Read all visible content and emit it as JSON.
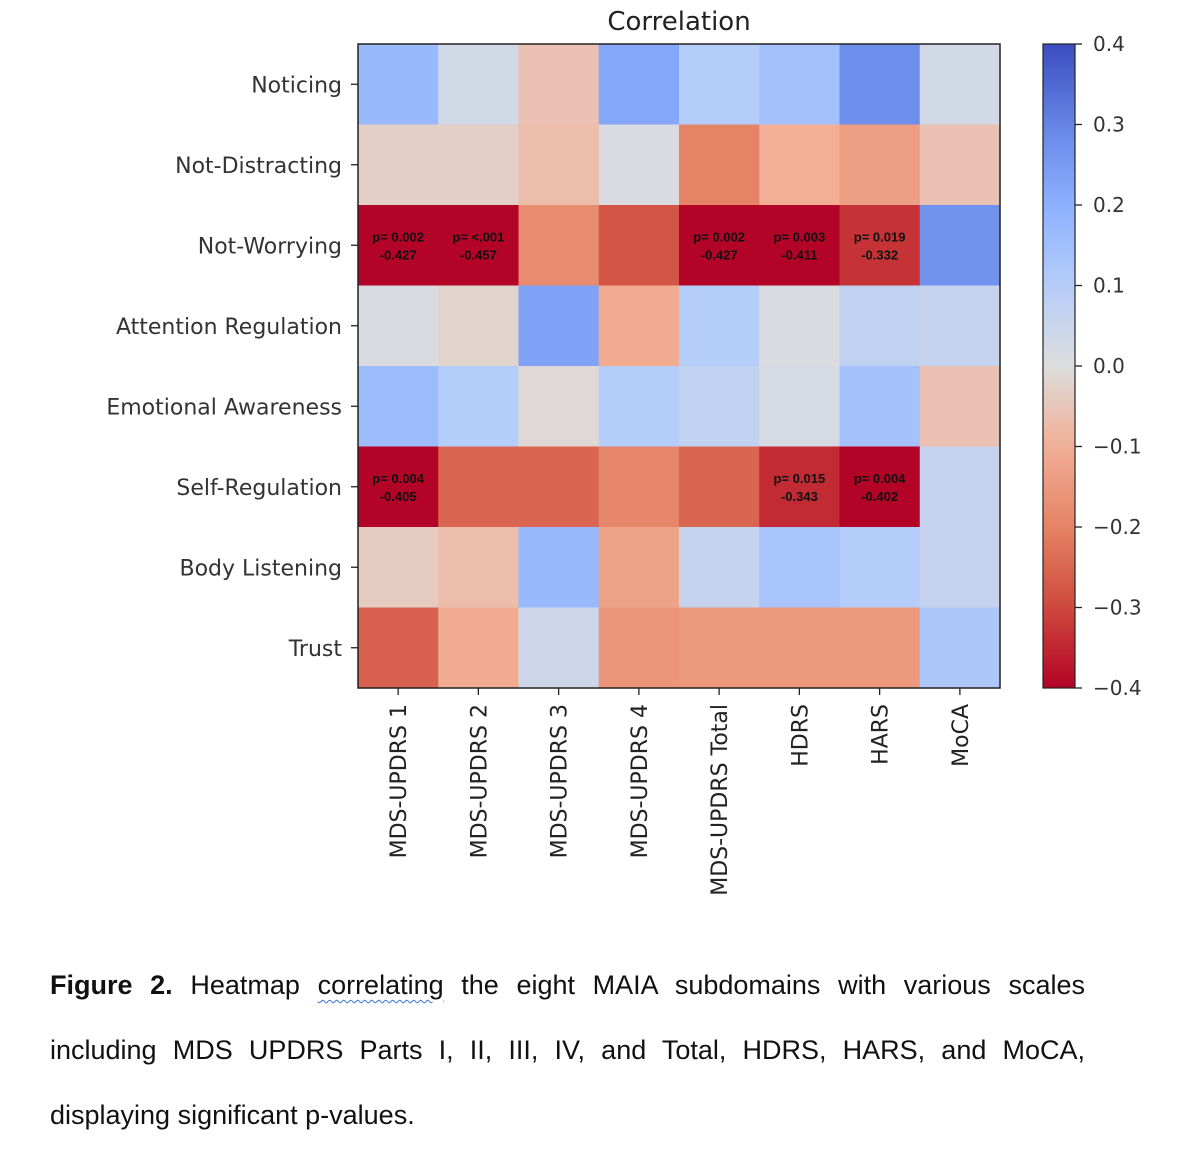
{
  "chart_data": {
    "type": "heatmap",
    "title": "Correlation",
    "xlabel": "",
    "ylabel": "",
    "rows": [
      "Noticing",
      "Not-Distracting",
      "Not-Worrying",
      "Attention Regulation",
      "Emotional Awareness",
      "Self-Regulation",
      "Body Listening",
      "Trust"
    ],
    "columns": [
      "MDS-UPDRS 1",
      "MDS-UPDRS 2",
      "MDS-UPDRS 3",
      "MDS-UPDRS 4",
      "MDS-UPDRS Total",
      "HDRS",
      "HARS",
      "MoCA"
    ],
    "values": [
      [
        0.17,
        0.03,
        -0.06,
        0.22,
        0.1,
        0.14,
        0.28,
        0.03
      ],
      [
        -0.03,
        -0.03,
        -0.07,
        0.01,
        -0.2,
        -0.1,
        -0.14,
        -0.06
      ],
      [
        -0.427,
        -0.457,
        -0.18,
        -0.28,
        -0.427,
        -0.411,
        -0.332,
        0.27
      ],
      [
        0.01,
        -0.02,
        0.23,
        -0.11,
        0.1,
        0.01,
        0.07,
        0.06
      ],
      [
        0.16,
        0.1,
        -0.01,
        0.1,
        0.07,
        0.02,
        0.14,
        -0.06
      ],
      [
        -0.405,
        -0.25,
        -0.25,
        -0.19,
        -0.25,
        -0.343,
        -0.402,
        0.06
      ],
      [
        -0.04,
        -0.07,
        0.17,
        -0.13,
        0.06,
        0.13,
        0.1,
        0.06
      ],
      [
        -0.26,
        -0.11,
        0.04,
        -0.16,
        -0.15,
        -0.15,
        -0.15,
        0.12
      ]
    ],
    "annotations": [
      {
        "row": 2,
        "col": 0,
        "p": "p= 0.002",
        "r": "-0.427"
      },
      {
        "row": 2,
        "col": 1,
        "p": "p= <.001",
        "r": "-0.457"
      },
      {
        "row": 2,
        "col": 4,
        "p": "p= 0.002",
        "r": "-0.427"
      },
      {
        "row": 2,
        "col": 5,
        "p": "p= 0.003",
        "r": "-0.411"
      },
      {
        "row": 2,
        "col": 6,
        "p": "p= 0.019",
        "r": "-0.332"
      },
      {
        "row": 5,
        "col": 0,
        "p": "p= 0.004",
        "r": "-0.405"
      },
      {
        "row": 5,
        "col": 5,
        "p": "p= 0.015",
        "r": "-0.343"
      },
      {
        "row": 5,
        "col": 6,
        "p": "p= 0.004",
        "r": "-0.402"
      }
    ],
    "colormap": "coolwarm",
    "vmin": -0.4,
    "vmax": 0.4,
    "colorbar_ticks": [
      "0.4",
      "0.3",
      "0.2",
      "0.1",
      "0.0",
      "−0.1",
      "−0.2",
      "−0.3",
      "−0.4"
    ],
    "colorbar_tick_values": [
      0.4,
      0.3,
      0.2,
      0.1,
      0.0,
      -0.1,
      -0.2,
      -0.3,
      -0.4
    ],
    "colorbar_placement": "right",
    "grid": false
  },
  "caption": {
    "label": "Figure 2.",
    "line1_pre": "Heatmap",
    "line1_flagged": "correlating",
    "line1_post": "the eight MAIA subdomains with various scales",
    "line2": "including MDS UPDRS Parts I, II, III, IV, and Total, HDRS, HARS, and MoCA,",
    "line3": "displaying significant p-values."
  }
}
